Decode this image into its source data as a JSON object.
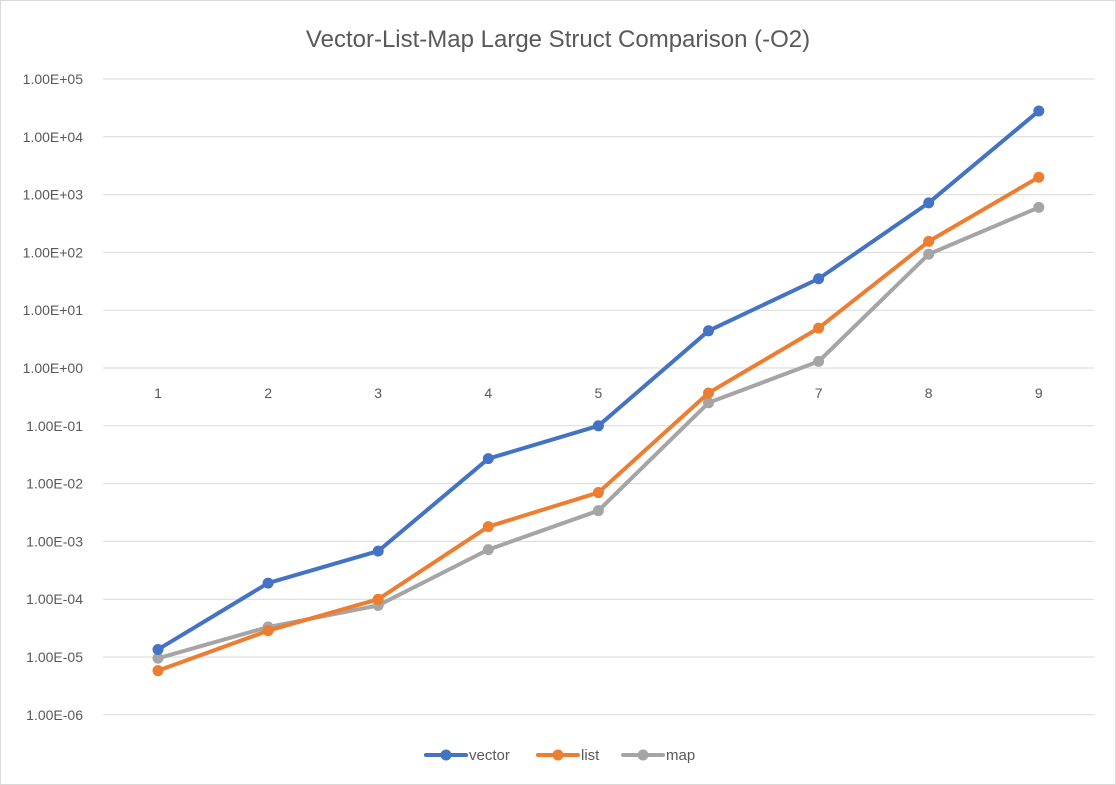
{
  "chart_data": {
    "type": "line",
    "title": "Vector-List-Map Large Struct Comparison (-O2)",
    "xlabel": "",
    "ylabel": "",
    "y_scale": "log10",
    "ylim": [
      1e-06,
      100000
    ],
    "x": [
      "1",
      "2",
      "3",
      "4",
      "5",
      "6",
      "7",
      "8",
      "9"
    ],
    "y_tick_labels": [
      "1.00E+05",
      "1.00E+04",
      "1.00E+03",
      "1.00E+02",
      "1.00E+01",
      "1.00E+00",
      "1.00E-01",
      "1.00E-02",
      "1.00E-03",
      "1.00E-04",
      "1.00E-05",
      "1.00E-06"
    ],
    "grid": true,
    "legend_position": "bottom",
    "series": [
      {
        "name": "vector",
        "color": "#4472C4",
        "values": [
          1.35e-05,
          0.00019,
          0.00068,
          0.027,
          0.1,
          4.4,
          35,
          720,
          28000
        ]
      },
      {
        "name": "list",
        "color": "#ED7D31",
        "values": [
          5.8e-06,
          2.85e-05,
          0.0001,
          0.0018,
          0.007,
          0.37,
          4.9,
          155,
          2000
        ]
      },
      {
        "name": "map",
        "color": "#A5A5A5",
        "values": [
          9.5e-06,
          3.3e-05,
          7.8e-05,
          0.00072,
          0.0034,
          0.25,
          1.3,
          93,
          600
        ]
      }
    ]
  }
}
